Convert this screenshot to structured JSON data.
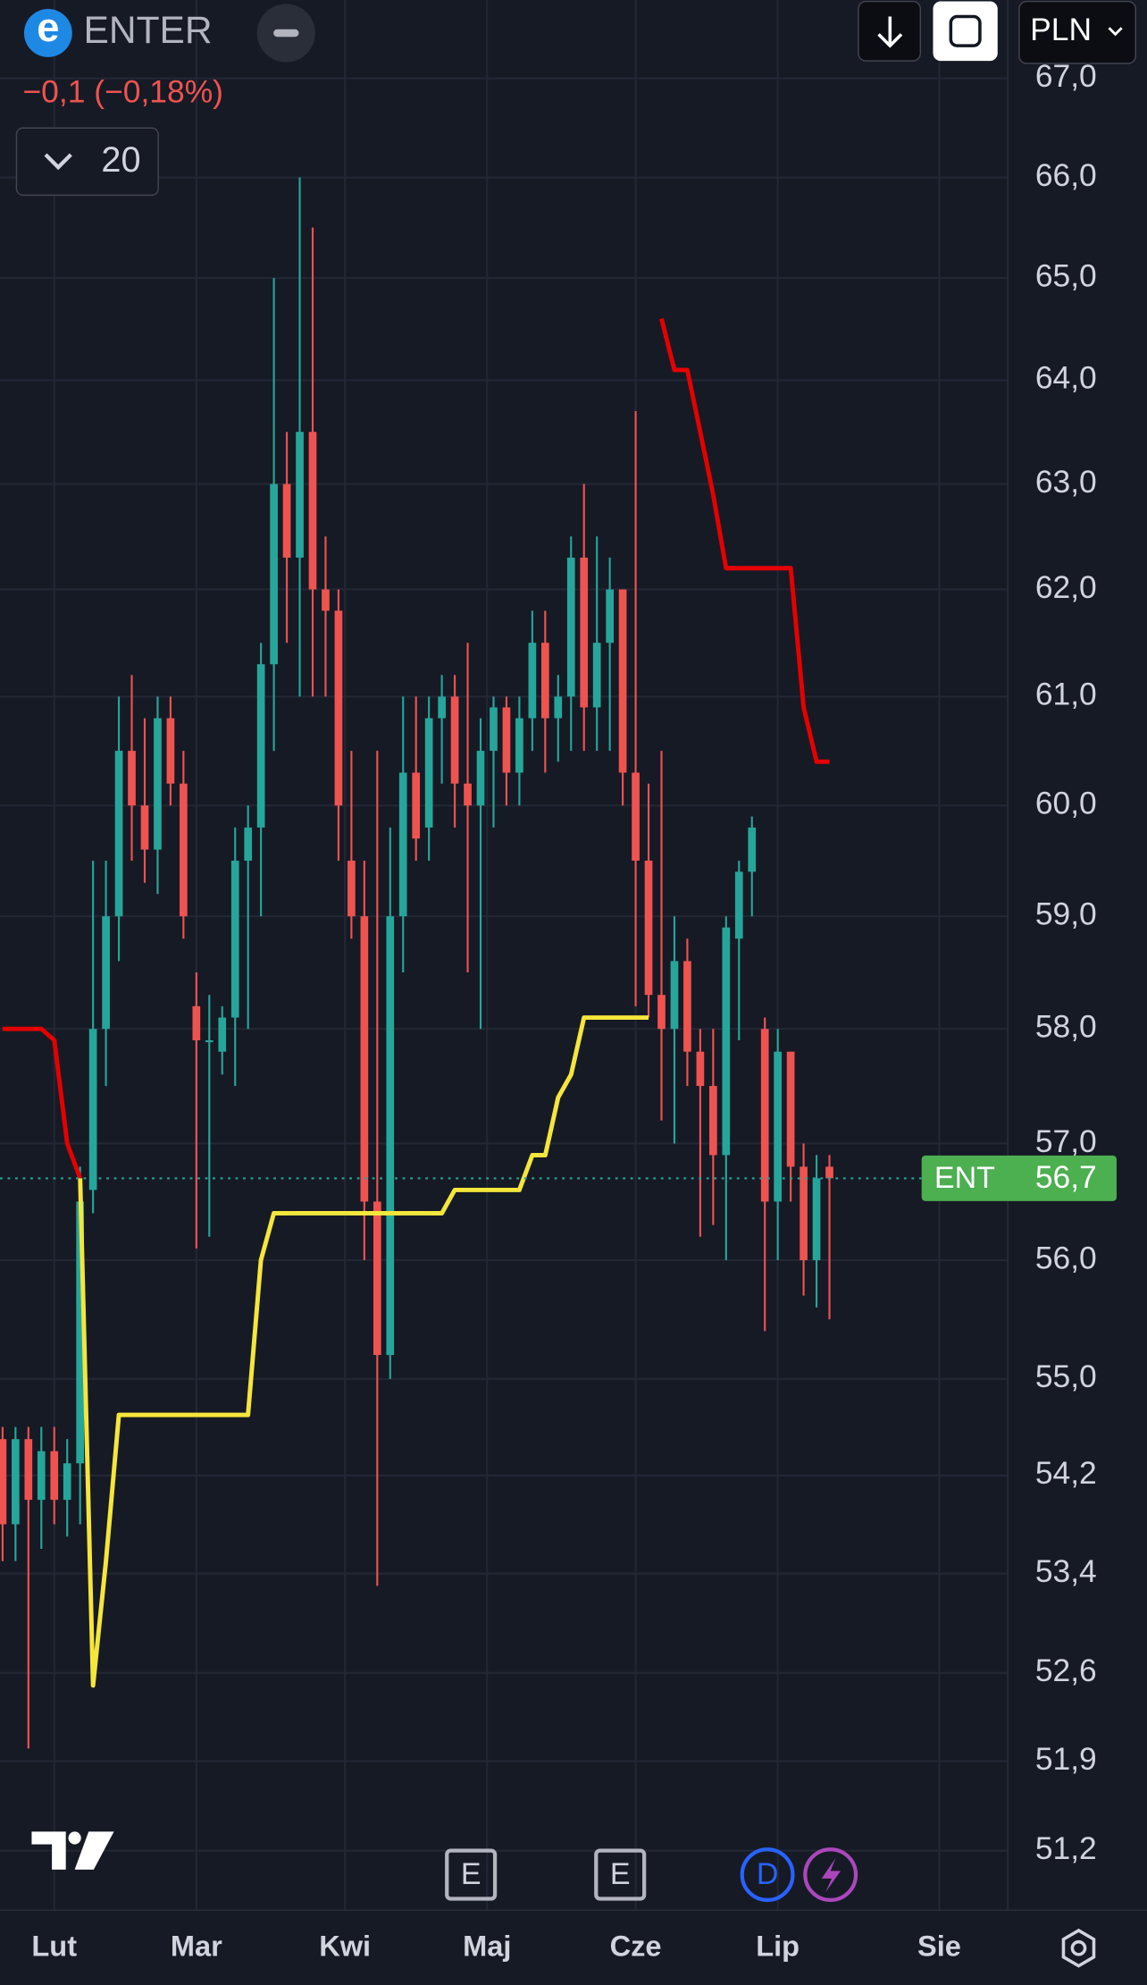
{
  "chart_data": {
    "type": "candlestick",
    "logo": "e",
    "symbol": "ENTER",
    "change": "−0,1 (−0,18%)",
    "interval": "20",
    "currency": "PLN",
    "log_scale": true,
    "grid": true,
    "up_color": "#26a69a",
    "down_color": "#ef5350",
    "x": [
      -8,
      -6,
      -4,
      -2,
      0,
      2,
      4,
      6,
      8,
      10,
      12,
      14,
      16,
      18,
      20,
      22,
      24,
      26,
      28,
      30,
      32,
      34,
      36,
      38,
      40,
      42,
      44,
      46,
      48,
      50,
      52,
      54,
      56,
      58,
      60,
      62,
      64,
      66,
      68,
      70,
      72,
      74,
      76,
      78,
      80,
      82,
      84,
      86,
      88,
      90,
      92,
      94,
      96,
      98,
      100,
      102,
      104,
      106,
      108,
      110,
      112,
      114,
      116,
      118,
      120
    ],
    "open": [
      54.5,
      53.8,
      54.5,
      54.0,
      54.4,
      54.0,
      54.3,
      56.6,
      58,
      59,
      60.5,
      60,
      59.6,
      60.8,
      60.2,
      58.2,
      57.9,
      57.8,
      58.1,
      59.5,
      59.8,
      61.3,
      63,
      62.3,
      63.5,
      62,
      61.8,
      59.5,
      59,
      56.5,
      55.2,
      59,
      60.3,
      59.8,
      60.8,
      61,
      60.2,
      60,
      60.5,
      60.9,
      60.3,
      60.8,
      61.5,
      60.8,
      61,
      62.3,
      60.9,
      61.5,
      62,
      60.3,
      59.5,
      58.3,
      58,
      58.6,
      57.8,
      57.5,
      56.9,
      58.8,
      59.4,
      58,
      56.5,
      57.8,
      56.8,
      56,
      56.8
    ],
    "high": [
      54.6,
      54.6,
      54.6,
      54.6,
      54.6,
      54.5,
      56.8,
      59.5,
      59.5,
      61,
      61.2,
      60.8,
      61,
      61,
      60.5,
      58.5,
      58.3,
      58.2,
      59.8,
      60,
      61.5,
      65,
      63.5,
      66,
      65.5,
      62.5,
      62,
      60.5,
      59.5,
      60.5,
      59.8,
      61,
      61,
      61,
      61.2,
      61.2,
      61.5,
      60.8,
      61,
      61,
      61,
      61.8,
      61.8,
      61.2,
      62.5,
      63,
      62.5,
      62.3,
      62,
      63.7,
      60.2,
      60.5,
      59,
      58.8,
      58,
      58,
      59,
      59.5,
      59.9,
      58.1,
      58,
      57.8,
      57,
      56.9,
      56.9
    ],
    "low": [
      53.5,
      53.5,
      52.0,
      53.6,
      53.8,
      53.7,
      53.8,
      56.4,
      57.5,
      58.6,
      59.5,
      59.3,
      59.2,
      60,
      58.8,
      56.1,
      56.2,
      57.6,
      57.5,
      58,
      59,
      60.5,
      61.5,
      61,
      61,
      61,
      59.5,
      58.8,
      56,
      53.3,
      55,
      58.5,
      59.5,
      59.5,
      60.2,
      59.8,
      58.5,
      58,
      59.8,
      60,
      60,
      60.5,
      60.3,
      60.4,
      60.5,
      60.5,
      60.5,
      60.5,
      60,
      58.2,
      58.1,
      57.2,
      57,
      57.5,
      56.2,
      56.3,
      56,
      57.9,
      59,
      55.4,
      56,
      56.5,
      55.7,
      55.6,
      55.5
    ],
    "close": [
      53.8,
      54.5,
      54.0,
      54.4,
      54.0,
      54.3,
      56.5,
      58,
      59,
      60.5,
      60,
      59.6,
      60.8,
      60.2,
      59,
      57.9,
      57.9,
      58.1,
      59.5,
      59.8,
      61.3,
      63,
      62.3,
      63.5,
      62,
      61.8,
      60,
      59,
      56.5,
      55.2,
      59,
      60.3,
      59.7,
      60.8,
      61,
      60.2,
      60,
      60.5,
      60.9,
      60.3,
      60.8,
      61.5,
      60.8,
      61,
      62.3,
      60.9,
      61.5,
      62,
      60.3,
      59.5,
      58.3,
      58,
      58.6,
      57.8,
      57.5,
      56.9,
      58.9,
      59.4,
      59.8,
      56.5,
      57.8,
      56.8,
      56,
      56.7,
      56.7
    ],
    "lines": [
      {
        "color": "#e50000",
        "values": [
          58,
          58,
          58,
          58,
          57.9,
          57.0,
          56.7,
          null,
          null,
          null,
          null,
          null,
          null,
          null,
          null,
          null,
          null,
          null,
          null,
          null,
          null,
          null,
          null,
          null,
          null,
          null,
          null,
          null,
          null,
          null,
          null,
          null,
          null,
          null,
          null,
          null,
          null,
          null,
          null,
          null,
          null,
          null,
          null,
          null,
          null,
          null,
          null,
          null,
          null,
          null,
          null,
          64.6,
          64.1,
          64.1,
          63.5,
          62.9,
          62.2,
          62.2,
          62.2,
          62.2,
          62.2,
          62.2,
          60.9,
          60.4,
          60.4
        ]
      },
      {
        "color": "#f5e63b",
        "values": [
          null,
          null,
          null,
          null,
          null,
          null,
          56.7,
          52.5,
          53.5,
          54.7,
          54.7,
          54.7,
          54.7,
          54.7,
          54.7,
          54.7,
          54.7,
          54.7,
          54.7,
          54.7,
          56.0,
          56.4,
          56.4,
          56.4,
          56.4,
          56.4,
          56.4,
          56.4,
          56.4,
          56.4,
          56.4,
          56.4,
          56.4,
          56.4,
          56.4,
          56.6,
          56.6,
          56.6,
          56.6,
          56.6,
          56.6,
          56.9,
          56.9,
          57.4,
          57.6,
          58.1,
          58.1,
          58.1,
          58.1,
          58.1,
          58.1,
          null,
          null,
          null,
          null,
          null,
          null,
          null,
          null,
          null,
          null,
          null,
          null,
          null,
          null
        ]
      }
    ],
    "last_price": 56.7,
    "last_price_label": "56,7",
    "last_tag": "ENT",
    "events": [
      "E",
      "E",
      "D"
    ],
    "event_x": [
      64.5,
      87.6,
      110.4
    ],
    "xlim": [
      -8.4,
      147.6
    ],
    "ylim": [
      50.74,
      67.8
    ],
    "xticks": [
      {
        "value": 0,
        "label": "Lut"
      },
      {
        "value": 22,
        "label": "Mar"
      },
      {
        "value": 45,
        "label": "Kwi"
      },
      {
        "value": 67,
        "label": "Maj"
      },
      {
        "value": 90,
        "label": "Cze"
      },
      {
        "value": 112,
        "label": "Lip"
      },
      {
        "value": 137,
        "label": "Sie"
      }
    ],
    "yticks": [
      {
        "value": 67,
        "label": "67,0"
      },
      {
        "value": 66,
        "label": "66,0"
      },
      {
        "value": 65,
        "label": "65,0"
      },
      {
        "value": 64,
        "label": "64,0"
      },
      {
        "value": 63,
        "label": "63,0"
      },
      {
        "value": 62,
        "label": "62,0"
      },
      {
        "value": 61,
        "label": "61,0"
      },
      {
        "value": 60,
        "label": "60,0"
      },
      {
        "value": 59,
        "label": "59,0"
      },
      {
        "value": 58,
        "label": "58,0"
      },
      {
        "value": 57,
        "label": "57,0"
      },
      {
        "value": 56,
        "label": "56,0"
      },
      {
        "value": 55,
        "label": "55,0"
      },
      {
        "value": 54.2,
        "label": "54,2"
      },
      {
        "value": 53.4,
        "label": "53,4"
      },
      {
        "value": 52.6,
        "label": "52,6"
      },
      {
        "value": 51.9,
        "label": "51,9"
      },
      {
        "value": 51.2,
        "label": "51,2"
      }
    ]
  }
}
